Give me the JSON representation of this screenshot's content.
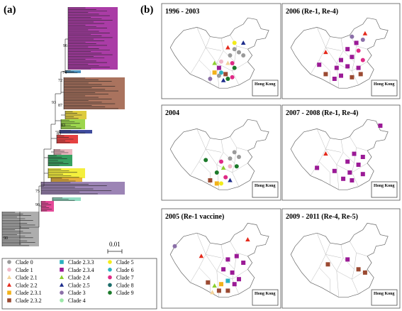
{
  "panel_a": {
    "letter": "(a)",
    "scale_label": "0.01",
    "node_labels": [
      "96",
      "74",
      "72",
      "93",
      "87",
      "83",
      "85",
      "75",
      "90",
      "90"
    ],
    "clade_blocks": [
      {
        "color": "#9b1a96"
      },
      {
        "color": "#2c7bb0"
      },
      {
        "color": "#9b5a42"
      },
      {
        "color": "#d8c21c"
      },
      {
        "color": "#8bcf2e"
      },
      {
        "color": "#1c2c8b"
      },
      {
        "color": "#e02020"
      },
      {
        "color": "#e9a9b4"
      },
      {
        "color": "#159045"
      },
      {
        "color": "#f2ec1b"
      },
      {
        "color": "#e3a31b"
      },
      {
        "color": "#8b6fa8"
      },
      {
        "color": "#df2a86"
      },
      {
        "color": "#7ed7b8"
      },
      {
        "color": "#9f9f9f"
      }
    ]
  },
  "panel_b": {
    "letter": "(b)",
    "hong_kong_label": "Hong Kong",
    "maps": [
      {
        "title": "1996 - 2003"
      },
      {
        "title": "2006 (Re-1, Re-4)"
      },
      {
        "title": "2004"
      },
      {
        "title": "2007 - 2008 (Re-1, Re-4)"
      },
      {
        "title": "2005 (Re-1 vaccine)"
      },
      {
        "title": "2009 - 2011 (Re-4, Re-5)"
      }
    ]
  },
  "legend": {
    "items": [
      {
        "label": "Clade 0",
        "shape": "circle",
        "color": "#9a9a9a"
      },
      {
        "label": "Clade 1",
        "shape": "circle",
        "color": "#f0b8c8"
      },
      {
        "label": "Clade 2.1",
        "shape": "triangle",
        "color": "#f2d39a"
      },
      {
        "label": "Clade 2.2",
        "shape": "triangle",
        "color": "#e52a1c"
      },
      {
        "label": "Clade 2.3.1",
        "shape": "square",
        "color": "#f2b21b"
      },
      {
        "label": "Clade 2.3.2",
        "shape": "square",
        "color": "#9b4a32"
      },
      {
        "label": "Clade 2.3.3",
        "shape": "square",
        "color": "#2ab1c0"
      },
      {
        "label": "Clade 2.3.4",
        "shape": "square",
        "color": "#9b1a96"
      },
      {
        "label": "Clade 2.4",
        "shape": "triangle",
        "color": "#8bcf2e"
      },
      {
        "label": "Clade 2.5",
        "shape": "triangle",
        "color": "#1c2c8b"
      },
      {
        "label": "Clade 3",
        "shape": "circle",
        "color": "#8b6fa8"
      },
      {
        "label": "Clade 4",
        "shape": "circle",
        "color": "#9be8a8"
      },
      {
        "label": "Clade 5",
        "shape": "circle",
        "color": "#f2ec1b"
      },
      {
        "label": "Clade 6",
        "shape": "circle",
        "color": "#2ab1c0"
      },
      {
        "label": "Clade 7",
        "shape": "circle",
        "color": "#df2a86"
      },
      {
        "label": "Clade 8",
        "shape": "circle",
        "color": "#1c6d6a"
      },
      {
        "label": "Clade 9",
        "shape": "circle",
        "color": "#1c7a2a"
      }
    ]
  }
}
